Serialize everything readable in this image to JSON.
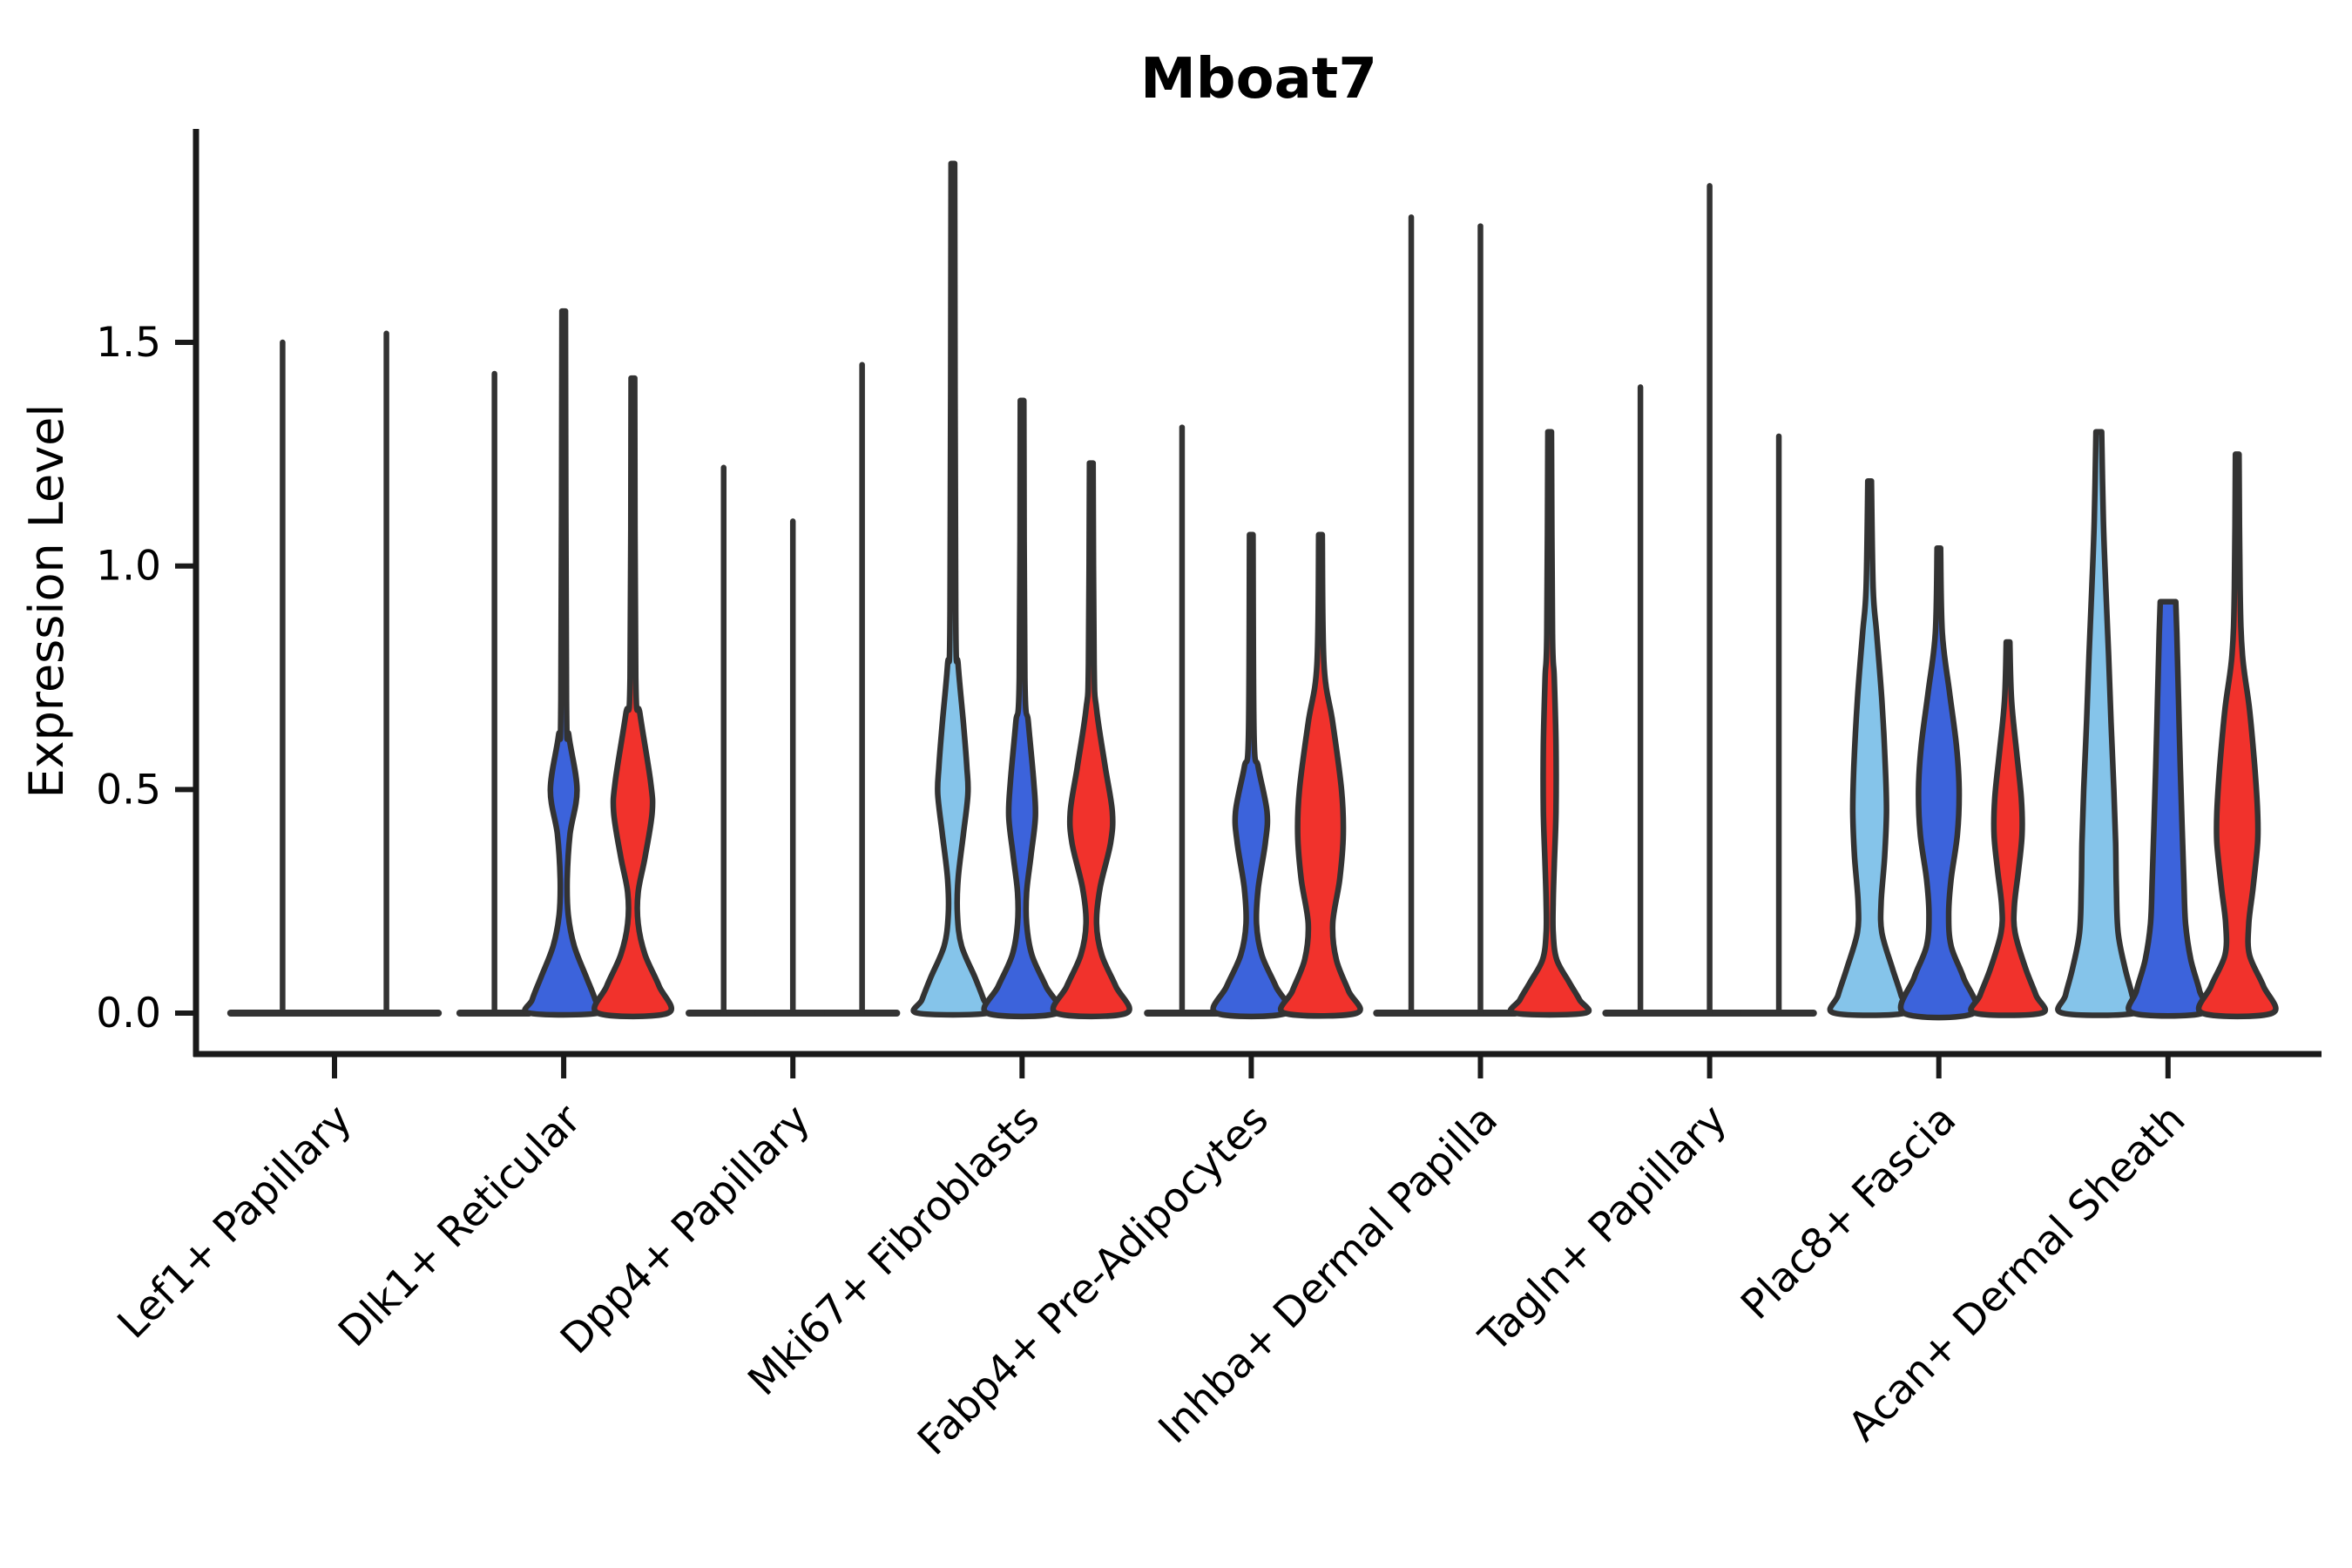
{
  "chart_data": {
    "type": "violin",
    "title": "Mboat7",
    "ylabel": "Expression Level",
    "xlabel": "",
    "grid": false,
    "legend": "none",
    "ylim": [
      -0.09,
      1.97
    ],
    "y_ticks": [
      {
        "value": 0.0,
        "label": "0.0"
      },
      {
        "value": 0.5,
        "label": "0.5"
      },
      {
        "value": 1.0,
        "label": "1.0"
      },
      {
        "value": 1.5,
        "label": "1.5"
      }
    ],
    "categories": [
      "Lef1+ Papillary",
      "Dlk1+ Reticular",
      "Dpp4+ Papillary",
      "Mki67+ Fibroblasts",
      "Fabp4+ Pre-Adipocytes",
      "Inhba+ Dermal Papilla",
      "Tagln+ Papillary",
      "Plac8+ Fascia",
      "Acan+ Dermal Sheath"
    ],
    "series_colors": {
      "light_blue": "#85C4EA",
      "dark_blue": "#3C63DB",
      "red": "#F1322C",
      "outline": "#333333"
    },
    "groups": [
      {
        "label": "Lef1+ Papillary",
        "violins": [
          {
            "color": "light_blue",
            "type": "collapsed",
            "max": 1.5
          },
          {
            "color": "dark_blue",
            "type": "collapsed",
            "max": 1.52
          }
        ]
      },
      {
        "label": "Dlk1+ Reticular",
        "violins": [
          {
            "color": "light_blue",
            "type": "collapsed",
            "max": 1.43
          },
          {
            "color": "dark_blue",
            "type": "shaped",
            "max": 1.57,
            "profile": [
              [
                1.57,
                0.05
              ],
              [
                0.7,
                0.08
              ],
              [
                0.62,
                0.15
              ],
              [
                0.5,
                0.38
              ],
              [
                0.4,
                0.18
              ],
              [
                0.3,
                0.1
              ],
              [
                0.22,
                0.13
              ],
              [
                0.15,
                0.3
              ],
              [
                0.08,
                0.65
              ],
              [
                0.03,
                0.9
              ],
              [
                0.0,
                0.98
              ]
            ]
          },
          {
            "color": "red",
            "type": "shaped",
            "max": 1.42,
            "profile": [
              [
                1.42,
                0.05
              ],
              [
                0.75,
                0.08
              ],
              [
                0.67,
                0.2
              ],
              [
                0.52,
                0.5
              ],
              [
                0.45,
                0.55
              ],
              [
                0.35,
                0.35
              ],
              [
                0.27,
                0.15
              ],
              [
                0.2,
                0.15
              ],
              [
                0.13,
                0.35
              ],
              [
                0.06,
                0.75
              ],
              [
                0.0,
                1.0
              ]
            ]
          }
        ]
      },
      {
        "label": "Dpp4+ Papillary",
        "violins": [
          {
            "color": "light_blue",
            "type": "collapsed",
            "max": 1.22
          },
          {
            "color": "dark_blue",
            "type": "collapsed",
            "max": 1.1
          },
          {
            "color": "red",
            "type": "collapsed",
            "max": 1.45
          }
        ]
      },
      {
        "label": "Mki67+ Fibroblasts",
        "violins": [
          {
            "color": "light_blue",
            "type": "shaped",
            "max": 1.9,
            "profile": [
              [
                1.9,
                0.05
              ],
              [
                0.9,
                0.08
              ],
              [
                0.78,
                0.15
              ],
              [
                0.65,
                0.3
              ],
              [
                0.55,
                0.4
              ],
              [
                0.49,
                0.43
              ],
              [
                0.4,
                0.3
              ],
              [
                0.3,
                0.15
              ],
              [
                0.22,
                0.13
              ],
              [
                0.15,
                0.25
              ],
              [
                0.08,
                0.63
              ],
              [
                0.03,
                0.88
              ],
              [
                0.0,
                1.0
              ]
            ]
          },
          {
            "color": "dark_blue",
            "type": "shaped",
            "max": 1.37,
            "profile": [
              [
                1.37,
                0.05
              ],
              [
                0.75,
                0.08
              ],
              [
                0.65,
                0.18
              ],
              [
                0.52,
                0.33
              ],
              [
                0.44,
                0.38
              ],
              [
                0.35,
                0.25
              ],
              [
                0.27,
                0.13
              ],
              [
                0.2,
                0.13
              ],
              [
                0.13,
                0.28
              ],
              [
                0.06,
                0.68
              ],
              [
                0.0,
                1.0
              ]
            ]
          },
          {
            "color": "red",
            "type": "shaped",
            "max": 1.23,
            "profile": [
              [
                1.23,
                0.05
              ],
              [
                0.78,
                0.08
              ],
              [
                0.68,
                0.15
              ],
              [
                0.55,
                0.4
              ],
              [
                0.45,
                0.6
              ],
              [
                0.38,
                0.55
              ],
              [
                0.28,
                0.25
              ],
              [
                0.2,
                0.15
              ],
              [
                0.13,
                0.3
              ],
              [
                0.06,
                0.7
              ],
              [
                0.0,
                1.0
              ]
            ]
          }
        ]
      },
      {
        "label": "Fabp4+ Pre-Adipocytes",
        "violins": [
          {
            "color": "light_blue",
            "type": "collapsed",
            "max": 1.31
          },
          {
            "color": "dark_blue",
            "type": "shaped",
            "max": 1.07,
            "profile": [
              [
                1.07,
                0.05
              ],
              [
                0.62,
                0.08
              ],
              [
                0.55,
                0.2
              ],
              [
                0.45,
                0.45
              ],
              [
                0.38,
                0.4
              ],
              [
                0.28,
                0.2
              ],
              [
                0.2,
                0.15
              ],
              [
                0.13,
                0.3
              ],
              [
                0.06,
                0.7
              ],
              [
                0.0,
                1.0
              ]
            ]
          },
          {
            "color": "red",
            "type": "shaped",
            "max": 1.07,
            "profile": [
              [
                1.07,
                0.05
              ],
              [
                0.78,
                0.1
              ],
              [
                0.65,
                0.35
              ],
              [
                0.5,
                0.6
              ],
              [
                0.4,
                0.65
              ],
              [
                0.3,
                0.55
              ],
              [
                0.2,
                0.35
              ],
              [
                0.12,
                0.45
              ],
              [
                0.05,
                0.8
              ],
              [
                0.0,
                1.03
              ]
            ]
          }
        ]
      },
      {
        "label": "Inhba+ Dermal Papilla",
        "violins": [
          {
            "color": "light_blue",
            "type": "collapsed",
            "max": 1.78
          },
          {
            "color": "dark_blue",
            "type": "collapsed",
            "max": 1.76
          },
          {
            "color": "red",
            "type": "shaped",
            "max": 1.3,
            "profile": [
              [
                1.3,
                0.05
              ],
              [
                0.85,
                0.08
              ],
              [
                0.75,
                0.13
              ],
              [
                0.6,
                0.18
              ],
              [
                0.45,
                0.18
              ],
              [
                0.33,
                0.13
              ],
              [
                0.25,
                0.1
              ],
              [
                0.18,
                0.1
              ],
              [
                0.12,
                0.2
              ],
              [
                0.07,
                0.55
              ],
              [
                0.03,
                0.85
              ],
              [
                0.0,
                1.0
              ]
            ]
          }
        ]
      },
      {
        "label": "Tagln+ Papillary",
        "violins": [
          {
            "color": "light_blue",
            "type": "collapsed",
            "max": 1.4
          },
          {
            "color": "dark_blue",
            "type": "collapsed",
            "max": 1.85
          },
          {
            "color": "red",
            "type": "collapsed",
            "max": 1.29
          }
        ]
      },
      {
        "label": "Plac8+ Fascia",
        "violins": [
          {
            "color": "light_blue",
            "type": "shaped",
            "max": 1.19,
            "profile": [
              [
                1.19,
                0.05
              ],
              [
                0.95,
                0.1
              ],
              [
                0.85,
                0.2
              ],
              [
                0.7,
                0.35
              ],
              [
                0.55,
                0.45
              ],
              [
                0.45,
                0.48
              ],
              [
                0.35,
                0.43
              ],
              [
                0.25,
                0.33
              ],
              [
                0.18,
                0.35
              ],
              [
                0.1,
                0.65
              ],
              [
                0.04,
                0.9
              ],
              [
                0.0,
                1.0
              ]
            ]
          },
          {
            "color": "dark_blue",
            "type": "shaped",
            "max": 1.04,
            "profile": [
              [
                1.04,
                0.05
              ],
              [
                0.85,
                0.1
              ],
              [
                0.72,
                0.3
              ],
              [
                0.6,
                0.5
              ],
              [
                0.5,
                0.58
              ],
              [
                0.4,
                0.53
              ],
              [
                0.3,
                0.35
              ],
              [
                0.22,
                0.28
              ],
              [
                0.15,
                0.35
              ],
              [
                0.08,
                0.7
              ],
              [
                0.0,
                1.0
              ]
            ]
          },
          {
            "color": "red",
            "type": "shaped",
            "max": 0.83,
            "profile": [
              [
                0.83,
                0.05
              ],
              [
                0.7,
                0.1
              ],
              [
                0.58,
                0.25
              ],
              [
                0.48,
                0.38
              ],
              [
                0.4,
                0.4
              ],
              [
                0.32,
                0.3
              ],
              [
                0.24,
                0.18
              ],
              [
                0.18,
                0.2
              ],
              [
                0.1,
                0.5
              ],
              [
                0.04,
                0.8
              ],
              [
                0.0,
                0.95
              ]
            ]
          }
        ]
      },
      {
        "label": "Acan+ Dermal Sheath",
        "violins": [
          {
            "color": "light_blue",
            "type": "shaped",
            "max": 1.3,
            "profile": [
              [
                1.3,
                0.08
              ],
              [
                1.1,
                0.13
              ],
              [
                0.95,
                0.2
              ],
              [
                0.8,
                0.28
              ],
              [
                0.65,
                0.35
              ],
              [
                0.5,
                0.43
              ],
              [
                0.38,
                0.48
              ],
              [
                0.28,
                0.5
              ],
              [
                0.18,
                0.55
              ],
              [
                0.1,
                0.75
              ],
              [
                0.04,
                0.95
              ],
              [
                0.0,
                1.03
              ]
            ]
          },
          {
            "color": "dark_blue",
            "type": "shaped",
            "max": 0.92,
            "profile": [
              [
                0.92,
                0.22
              ],
              [
                0.85,
                0.25
              ],
              [
                0.7,
                0.3
              ],
              [
                0.55,
                0.35
              ],
              [
                0.42,
                0.4
              ],
              [
                0.3,
                0.45
              ],
              [
                0.2,
                0.5
              ],
              [
                0.12,
                0.65
              ],
              [
                0.05,
                0.9
              ],
              [
                0.0,
                1.0
              ]
            ]
          },
          {
            "color": "red",
            "type": "shaped",
            "max": 1.25,
            "profile": [
              [
                1.25,
                0.05
              ],
              [
                0.95,
                0.08
              ],
              [
                0.8,
                0.15
              ],
              [
                0.68,
                0.35
              ],
              [
                0.55,
                0.5
              ],
              [
                0.45,
                0.58
              ],
              [
                0.38,
                0.58
              ],
              [
                0.28,
                0.45
              ],
              [
                0.2,
                0.33
              ],
              [
                0.13,
                0.35
              ],
              [
                0.06,
                0.75
              ],
              [
                0.0,
                1.0
              ]
            ]
          }
        ]
      }
    ]
  }
}
